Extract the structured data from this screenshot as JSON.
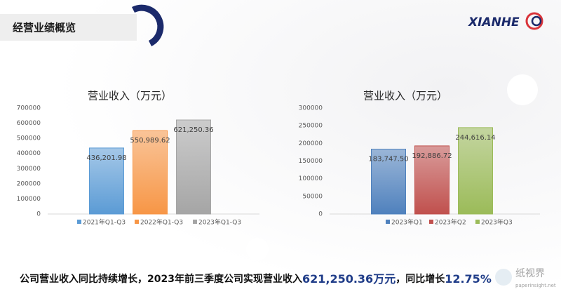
{
  "header": {
    "title": "经营业绩概览",
    "logo": "XIANHE"
  },
  "chart_data": [
    {
      "type": "bar",
      "title": "营业收入（万元）",
      "categories": [
        "2021年Q1-Q3",
        "2022年Q1-Q3",
        "2023年Q1-Q3"
      ],
      "values": [
        436201.98,
        550989.62,
        621250.36
      ],
      "value_labels": [
        "436,201.98",
        "550,989.62",
        "621,250.36"
      ],
      "colors": [
        "#5b9bd5",
        "#f79646",
        "#a5a5a5"
      ],
      "ylim": [
        0,
        700000
      ],
      "yticks": [
        0,
        100000,
        200000,
        300000,
        400000,
        500000,
        600000,
        700000
      ]
    },
    {
      "type": "bar",
      "title": "营业收入（万元）",
      "categories": [
        "2023年Q1",
        "2023年Q2",
        "2023年Q3"
      ],
      "values": [
        183747.5,
        192886.72,
        244616.14
      ],
      "value_labels": [
        "183,747.50",
        "192,886.72",
        "244,616.14"
      ],
      "colors": [
        "#4f81bd",
        "#c0504d",
        "#9bbb59"
      ],
      "ylim": [
        0,
        300000
      ],
      "yticks": [
        0,
        50000,
        100000,
        150000,
        200000,
        250000,
        300000
      ]
    }
  ],
  "footer": {
    "parts": [
      "公司营业收入同比持续增长，2023年前三季度公司实现营业收入",
      "621,250.36万元",
      "，同比增长",
      "12.75%"
    ]
  },
  "watermark": {
    "name": "纸视界",
    "url": "paperinsight.net"
  }
}
